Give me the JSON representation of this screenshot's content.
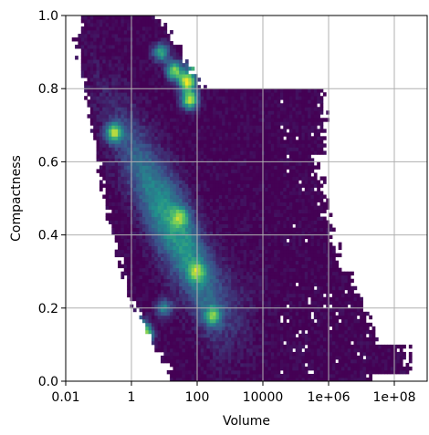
{
  "chart_data": {
    "type": "heatmap",
    "title": "",
    "xlabel": "Volume",
    "ylabel": "Compactness",
    "x_scale": "log",
    "xlim": [
      0.01,
      1000000000
    ],
    "ylim": [
      0.0,
      1.0
    ],
    "x_ticks": [
      0.01,
      1,
      100,
      10000,
      1000000,
      100000000
    ],
    "x_tick_labels": [
      "0.01",
      "1",
      "100",
      "10000",
      "1e+06",
      "1e+08"
    ],
    "y_ticks": [
      0.0,
      0.2,
      0.4,
      0.6,
      0.8,
      1.0
    ],
    "y_tick_labels": [
      "0.0",
      "0.2",
      "0.4",
      "0.6",
      "0.8",
      "1.0"
    ],
    "grid": true,
    "colormap": "viridis",
    "colors": {
      "low": "#440154",
      "mid_low": "#3b528b",
      "mid": "#21918c",
      "mid_high": "#5ec962",
      "high": "#fde725"
    },
    "density_ridge": {
      "x": [
        0.05,
        0.2,
        1,
        5,
        20,
        60,
        150,
        400,
        2000
      ],
      "y_center": [
        0.85,
        0.72,
        0.62,
        0.5,
        0.42,
        0.35,
        0.28,
        0.22,
        0.18
      ]
    },
    "hotspots": [
      {
        "x": 50,
        "y": 0.82,
        "level": 1.0
      },
      {
        "x": 60,
        "y": 0.77,
        "level": 0.9
      },
      {
        "x": 20,
        "y": 0.85,
        "level": 0.8
      },
      {
        "x": 100,
        "y": 0.87,
        "level": 0.95
      },
      {
        "x": 8,
        "y": 0.9,
        "level": 0.6
      },
      {
        "x": 2.5,
        "y": 0.13,
        "level": 0.85
      },
      {
        "x": 1.5,
        "y": 0.15,
        "level": 0.7
      },
      {
        "x": 0.3,
        "y": 0.68,
        "level": 0.75
      },
      {
        "x": 100,
        "y": 0.3,
        "level": 0.5
      },
      {
        "x": 30,
        "y": 0.45,
        "level": 0.45
      },
      {
        "x": 300,
        "y": 0.18,
        "level": 0.55
      },
      {
        "x": 10,
        "y": 0.2,
        "level": 0.45
      }
    ]
  }
}
